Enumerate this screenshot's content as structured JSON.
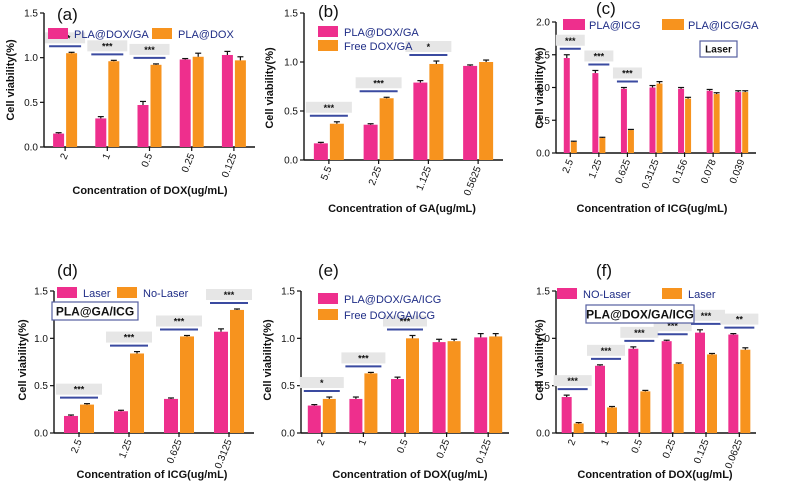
{
  "colors": {
    "pink": "#ee2f8d",
    "orange": "#f7931e",
    "sigline": "#3a4aa0",
    "sigbox": "#e6e6e6",
    "axis": "#111111",
    "errorbar": "#111111"
  },
  "chart_data": [
    {
      "type": "bar",
      "letter": "(a)",
      "xlabel": "Concentration of DOX(ug/mL)",
      "ylabel": "Cell viability(%)",
      "ylim": [
        0,
        1.5
      ],
      "yticks": [
        "0.0",
        "0.5",
        "1.0",
        "1.5"
      ],
      "categories": [
        "2",
        "1",
        "0.5",
        "0.25",
        "0.125"
      ],
      "series": [
        {
          "name": "PLA@DOX/GA",
          "color": "pink",
          "values": [
            0.15,
            0.32,
            0.47,
            0.98,
            1.03
          ],
          "errors": [
            0.01,
            0.02,
            0.04,
            0.01,
            0.04
          ]
        },
        {
          "name": "PLA@DOX",
          "color": "orange",
          "values": [
            1.05,
            0.96,
            0.92,
            1.01,
            0.97
          ],
          "errors": [
            0.01,
            0.01,
            0.01,
            0.04,
            0.04
          ]
        }
      ],
      "significance": [
        "***",
        "***",
        "***",
        "",
        ""
      ],
      "box_label": ""
    },
    {
      "type": "bar",
      "letter": "(b)",
      "xlabel": "Concentration of GA(ug/mL)",
      "ylabel": "Cell viability(%)",
      "ylim": [
        0,
        1.5
      ],
      "yticks": [
        "0.0",
        "0.5",
        "1.0",
        "1.5"
      ],
      "categories": [
        "5.5",
        "2.25",
        "1.125",
        "0.5625"
      ],
      "series": [
        {
          "name": "PLA@DOX/GA",
          "color": "pink",
          "values": [
            0.17,
            0.36,
            0.79,
            0.96
          ],
          "errors": [
            0.01,
            0.01,
            0.02,
            0.01
          ]
        },
        {
          "name": "Free DOX/GA",
          "color": "orange",
          "values": [
            0.37,
            0.63,
            0.98,
            1.0
          ],
          "errors": [
            0.02,
            0.01,
            0.03,
            0.02
          ]
        }
      ],
      "significance": [
        "***",
        "***",
        "*",
        ""
      ],
      "box_label": ""
    },
    {
      "type": "bar",
      "letter": "(c)",
      "xlabel": "Concentration of ICG(ug/mL)",
      "ylabel": "Cell viability(%)",
      "ylim": [
        0,
        2.0
      ],
      "yticks": [
        "0.0",
        "0.5",
        "1.0",
        "1.5",
        "2.0"
      ],
      "categories": [
        "2.5",
        "1.25",
        "0.625",
        "0.3125",
        "0.156",
        "0.078",
        "0.039"
      ],
      "series": [
        {
          "name": "PLA@ICG",
          "color": "pink",
          "values": [
            1.45,
            1.22,
            0.98,
            1.0,
            0.98,
            0.95,
            0.93
          ],
          "errors": [
            0.05,
            0.04,
            0.02,
            0.03,
            0.02,
            0.02,
            0.02
          ]
        },
        {
          "name": "PLA@ICG/GA",
          "color": "orange",
          "values": [
            0.17,
            0.23,
            0.35,
            1.06,
            0.83,
            0.9,
            0.93
          ],
          "errors": [
            0.01,
            0.01,
            0.01,
            0.03,
            0.02,
            0.02,
            0.02
          ]
        }
      ],
      "significance": [
        "***",
        "***",
        "***",
        "",
        "",
        "",
        ""
      ],
      "box_label": "Laser"
    },
    {
      "type": "bar",
      "letter": "(d)",
      "xlabel": "Concentration of ICG(ug/mL)",
      "ylabel": "Cell viability(%)",
      "ylim": [
        0,
        1.5
      ],
      "yticks": [
        "0.0",
        "0.5",
        "1.0",
        "1.5"
      ],
      "categories": [
        "2.5",
        "1.25",
        "0.625",
        "0.3125"
      ],
      "series": [
        {
          "name": "Laser",
          "color": "pink",
          "values": [
            0.18,
            0.23,
            0.36,
            1.07
          ],
          "errors": [
            0.01,
            0.01,
            0.01,
            0.03
          ]
        },
        {
          "name": "No-Laser",
          "color": "orange",
          "values": [
            0.3,
            0.84,
            1.02,
            1.3
          ],
          "errors": [
            0.01,
            0.02,
            0.01,
            0.01
          ]
        }
      ],
      "significance": [
        "***",
        "***",
        "***",
        "***"
      ],
      "box_label": "PLA@GA/ICG"
    },
    {
      "type": "bar",
      "letter": "(e)",
      "xlabel": "Concentration of DOX(ug/mL)",
      "ylabel": "Cell viability(%)",
      "ylim": [
        0,
        1.5
      ],
      "yticks": [
        "0.0",
        "0.5",
        "1.0",
        "1.5"
      ],
      "categories": [
        "2",
        "1",
        "0.5",
        "0.25",
        "0.125"
      ],
      "series": [
        {
          "name": "PLA@DOX/GA/ICG",
          "color": "pink",
          "values": [
            0.29,
            0.36,
            0.57,
            0.96,
            1.01
          ],
          "errors": [
            0.01,
            0.02,
            0.02,
            0.03,
            0.04
          ]
        },
        {
          "name": "Free DOX/GA/ICG",
          "color": "orange",
          "values": [
            0.36,
            0.63,
            1.0,
            0.97,
            1.02
          ],
          "errors": [
            0.02,
            0.01,
            0.03,
            0.02,
            0.03
          ]
        }
      ],
      "significance": [
        "*",
        "***",
        "***",
        "",
        ""
      ],
      "box_label": ""
    },
    {
      "type": "bar",
      "letter": "(f)",
      "xlabel": "Concentration of DOX(ug/mL)",
      "ylabel": "Cell viability(%)",
      "ylim": [
        0,
        1.5
      ],
      "yticks": [
        "0.0",
        "0.5",
        "1.0",
        "1.5"
      ],
      "categories": [
        "2",
        "1",
        "0.5",
        "0.25",
        "0.125",
        "0.0625"
      ],
      "series": [
        {
          "name": "NO-Laser",
          "color": "pink",
          "values": [
            0.38,
            0.71,
            0.89,
            0.97,
            1.06,
            1.04
          ],
          "errors": [
            0.02,
            0.01,
            0.02,
            0.01,
            0.03,
            0.01
          ]
        },
        {
          "name": "Laser",
          "color": "orange",
          "values": [
            0.1,
            0.27,
            0.44,
            0.73,
            0.83,
            0.88
          ],
          "errors": [
            0.01,
            0.01,
            0.01,
            0.01,
            0.01,
            0.02
          ]
        }
      ],
      "significance": [
        "***",
        "***",
        "***",
        "***",
        "***",
        "**"
      ],
      "box_label": "PLA@DOX/GA/ICG"
    }
  ]
}
